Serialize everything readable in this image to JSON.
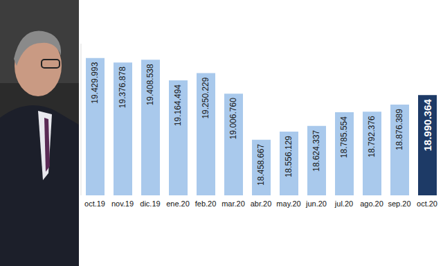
{
  "chart_data": {
    "type": "bar",
    "categories": [
      "oct.19",
      "nov.19",
      "dic.19",
      "ene.20",
      "feb.20",
      "mar.20",
      "abr.20",
      "may.20",
      "jun.20",
      "jul.20",
      "ago.20",
      "sep.20",
      "oct.20"
    ],
    "values": [
      19429993,
      19376878,
      19408538,
      19164494,
      19250229,
      19006760,
      18458667,
      18556129,
      18624337,
      18785554,
      18792376,
      18876389,
      18990364
    ],
    "value_labels": [
      "19.429.993",
      "19.376.878",
      "19.408.538",
      "19.164.494",
      "19.250.229",
      "19.006.760",
      "18.458.667",
      "18.556.129",
      "18.624.337",
      "18.785.554",
      "18.792.376",
      "18.876.389",
      "18.990.364"
    ],
    "colors": [
      "#a9c9ec",
      "#a9c9ec",
      "#a9c9ec",
      "#a9c9ec",
      "#a9c9ec",
      "#a9c9ec",
      "#a9c9ec",
      "#a9c9ec",
      "#a9c9ec",
      "#a9c9ec",
      "#a9c9ec",
      "#a9c9ec",
      "#1d3a66"
    ],
    "ylim": [
      17800000,
      19600000
    ],
    "yticks": [],
    "grid": false,
    "data_labels": true,
    "tick_labels": "x"
  }
}
